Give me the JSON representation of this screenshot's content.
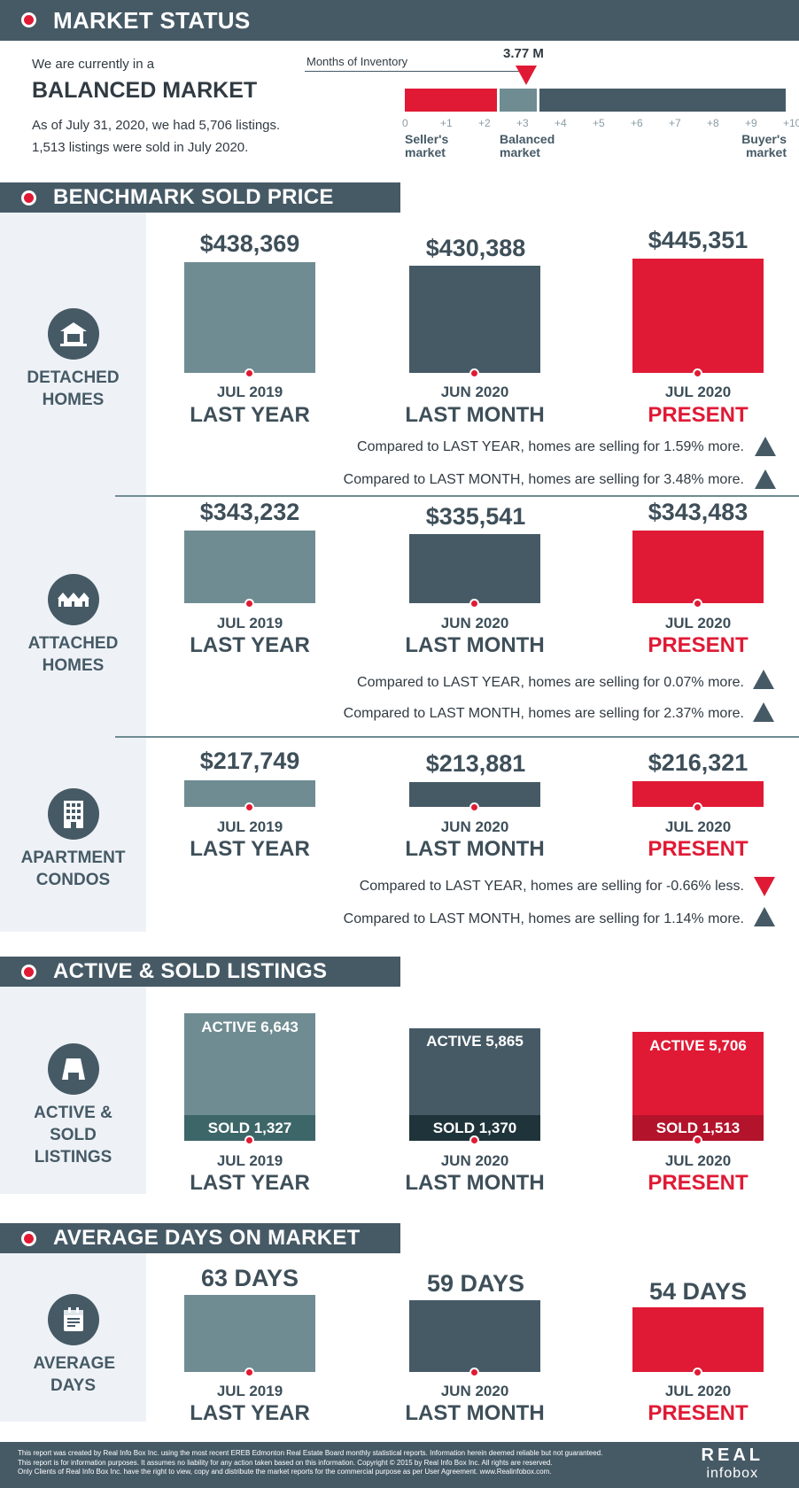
{
  "market_status": {
    "header": "MARKET STATUS",
    "intro": "We are currently in a",
    "market_type": "BALANCED MARKET",
    "listings_line": "As of July 31, 2020, we had 5,706 listings.",
    "sold_line": "1,513 listings were sold in July 2020.",
    "moi_label": "Months of Inventory",
    "moi_value": "3.77 M",
    "moi_numeric": 3.77,
    "scale_ticks": [
      "0",
      "+1",
      "+2",
      "+3",
      "+4",
      "+5",
      "+6",
      "+7",
      "+8",
      "+9",
      "+10"
    ],
    "sellers": "Seller's market",
    "balanced": "Balanced market",
    "buyers": "Buyer's market"
  },
  "periods": [
    {
      "month": "JUL 2019",
      "label": "LAST YEAR"
    },
    {
      "month": "JUN 2020",
      "label": "LAST MONTH"
    },
    {
      "month": "JUL 2020",
      "label": "PRESENT"
    }
  ],
  "benchmark": {
    "header": "BENCHMARK SOLD PRICE",
    "detached": {
      "name": "DETACHED HOMES",
      "prices": [
        "$438,369",
        "$430,388",
        "$445,351"
      ],
      "cmp_year": "Compared to LAST YEAR, homes are selling for 1.59% more.",
      "cmp_month": "Compared to LAST MONTH, homes are selling for 3.48% more."
    },
    "attached": {
      "name": "ATTACHED HOMES",
      "prices": [
        "$343,232",
        "$335,541",
        "$343,483"
      ],
      "cmp_year": "Compared to LAST YEAR, homes are selling for 0.07% more.",
      "cmp_month": "Compared to LAST MONTH, homes are selling for 2.37% more."
    },
    "apartment": {
      "name": "APARTMENT CONDOS",
      "prices": [
        "$217,749",
        "$213,881",
        "$216,321"
      ],
      "cmp_year": "Compared to LAST YEAR, homes are selling for -0.66% less.",
      "cmp_month": "Compared to LAST MONTH, homes are selling for 1.14% more."
    }
  },
  "listings": {
    "header": "ACTIVE & SOLD LISTINGS",
    "name": "ACTIVE & SOLD LISTINGS",
    "active": [
      "ACTIVE 6,643",
      "ACTIVE 5,865",
      "ACTIVE 5,706"
    ],
    "sold": [
      "SOLD 1,327",
      "SOLD 1,370",
      "SOLD 1,513"
    ]
  },
  "days": {
    "header": "AVERAGE DAYS ON MARKET",
    "name": "AVERAGE DAYS",
    "values": [
      "63 DAYS",
      "59 DAYS",
      "54 DAYS"
    ]
  },
  "footer": {
    "line1": "This report was created by Real Info Box Inc. using the most recent  EREB Edmonton Real Estate Board monthly statistical reports. Information herein deemed reliable but not guaranteed.",
    "line2": "This report is for information purposes. It assumes no liability for any action taken based on this information. Copyright © 2015 by Real Info Box Inc. All rights are reserved.",
    "line3": "Only Clients of Real Info Box Inc. have the right to view, copy and distribute the market reports for the commercial purpose as per User Agreement. www.Realinfobox.com.",
    "logo_top": "REAL",
    "logo_bottom": "infobox"
  },
  "colors": {
    "red": "#e01a35",
    "slate": "#465a66",
    "teal": "#6f8c92"
  }
}
